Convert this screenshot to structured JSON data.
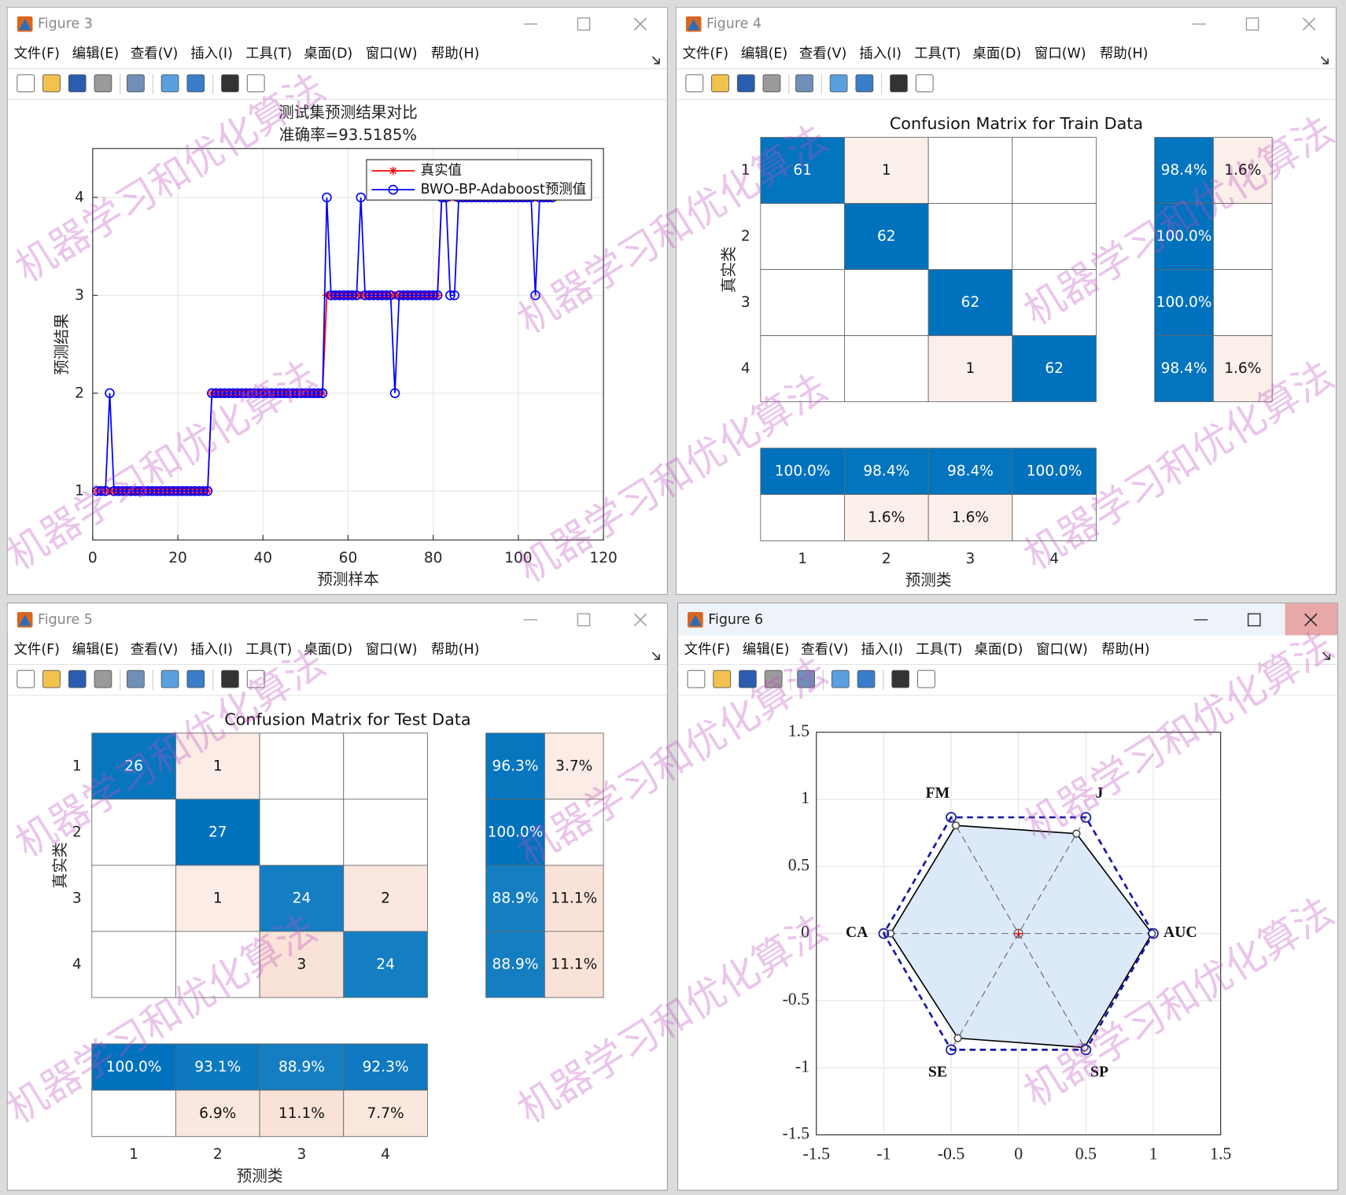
{
  "menu": [
    "文件(F)",
    "编辑(E)",
    "查看(V)",
    "插入(I)",
    "工具(T)",
    "桌面(D)",
    "窗口(W)",
    "帮助(H)"
  ],
  "watermark": "机器学习和优化算法",
  "windows": [
    {
      "title": "Figure 3",
      "chart": {
        "type": "line",
        "title": "测试集预测结果对比",
        "subtitle": "准确率=93.5185%",
        "xlabel": "预测样本",
        "ylabel": "预测结果",
        "xlim": [
          0,
          120
        ],
        "ylim": [
          0.5,
          4.5
        ],
        "xticks": [
          0,
          20,
          40,
          60,
          80,
          100,
          120
        ],
        "yticks": [
          1,
          2,
          3,
          4
        ],
        "grid": true,
        "legend": "upper right",
        "x": [
          1,
          2,
          3,
          4,
          5,
          6,
          7,
          8,
          9,
          10,
          11,
          12,
          13,
          14,
          15,
          16,
          17,
          18,
          19,
          20,
          21,
          22,
          23,
          24,
          25,
          26,
          27,
          28,
          29,
          30,
          31,
          32,
          33,
          34,
          35,
          36,
          37,
          38,
          39,
          40,
          41,
          42,
          43,
          44,
          45,
          46,
          47,
          48,
          49,
          50,
          51,
          52,
          53,
          54,
          55,
          56,
          57,
          58,
          59,
          60,
          61,
          62,
          63,
          64,
          65,
          66,
          67,
          68,
          69,
          70,
          71,
          72,
          73,
          74,
          75,
          76,
          77,
          78,
          79,
          80,
          81,
          82,
          83,
          84,
          85,
          86,
          87,
          88,
          89,
          90,
          91,
          92,
          93,
          94,
          95,
          96,
          97,
          98,
          99,
          100,
          101,
          102,
          103,
          104,
          105,
          106,
          107,
          108
        ],
        "series": [
          {
            "name": "真实值",
            "color": "#ff0000",
            "marker": "asterisk",
            "values": [
              1,
              1,
              1,
              1,
              1,
              1,
              1,
              1,
              1,
              1,
              1,
              1,
              1,
              1,
              1,
              1,
              1,
              1,
              1,
              1,
              1,
              1,
              1,
              1,
              1,
              1,
              1,
              2,
              2,
              2,
              2,
              2,
              2,
              2,
              2,
              2,
              2,
              2,
              2,
              2,
              2,
              2,
              2,
              2,
              2,
              2,
              2,
              2,
              2,
              2,
              2,
              2,
              2,
              2,
              3,
              3,
              3,
              3,
              3,
              3,
              3,
              3,
              3,
              3,
              3,
              3,
              3,
              3,
              3,
              3,
              3,
              3,
              3,
              3,
              3,
              3,
              3,
              3,
              3,
              3,
              3,
              4,
              4,
              4,
              4,
              4,
              4,
              4,
              4,
              4,
              4,
              4,
              4,
              4,
              4,
              4,
              4,
              4,
              4,
              4,
              4,
              4,
              4,
              4,
              4,
              4,
              4,
              4
            ]
          },
          {
            "name": "BWO-BP-Adaboost预测值",
            "color": "#0000ff",
            "marker": "circle",
            "values": [
              1,
              1,
              1,
              2,
              1,
              1,
              1,
              1,
              1,
              1,
              1,
              1,
              1,
              1,
              1,
              1,
              1,
              1,
              1,
              1,
              1,
              1,
              1,
              1,
              1,
              1,
              1,
              2,
              2,
              2,
              2,
              2,
              2,
              2,
              2,
              2,
              2,
              2,
              2,
              2,
              2,
              2,
              2,
              2,
              2,
              2,
              2,
              2,
              2,
              2,
              2,
              2,
              2,
              2,
              4,
              3,
              3,
              3,
              3,
              3,
              3,
              3,
              4,
              3,
              3,
              3,
              3,
              3,
              3,
              3,
              2,
              3,
              3,
              3,
              3,
              3,
              3,
              3,
              3,
              3,
              3,
              4,
              4,
              3,
              3,
              4,
              4,
              4,
              4,
              4,
              4,
              4,
              4,
              4,
              4,
              4,
              4,
              4,
              4,
              4,
              4,
              4,
              4,
              3,
              4,
              4,
              4,
              4
            ]
          }
        ]
      }
    },
    {
      "title": "Figure 4",
      "chart": {
        "type": "confusion",
        "title": "Confusion Matrix for Train Data",
        "xlabel": "预测类",
        "ylabel": "真实类",
        "classes": [
          1,
          2,
          3,
          4
        ],
        "matrix": [
          [
            61,
            1,
            null,
            null
          ],
          [
            null,
            62,
            null,
            null
          ],
          [
            null,
            null,
            62,
            null
          ],
          [
            null,
            null,
            1,
            62
          ]
        ],
        "row_summary": {
          "values": [
            [
              98.4,
              1.6
            ],
            [
              100,
              null
            ],
            [
              100,
              null
            ],
            [
              98.4,
              1.6
            ]
          ],
          "value_labels": [
            [
              "98.4%",
              "1.6%"
            ],
            [
              "100.0%",
              null
            ],
            [
              "100.0%",
              null
            ],
            [
              "98.4%",
              "1.6%"
            ]
          ]
        },
        "column_summary": {
          "values": [
            [
              100,
              98.4,
              98.4,
              100
            ],
            [
              null,
              1.6,
              1.6,
              null
            ]
          ],
          "value_labels": [
            [
              "100.0%",
              "98.4%",
              "98.4%",
              "100.0%"
            ],
            [
              null,
              "1.6%",
              "1.6%",
              null
            ]
          ]
        }
      }
    },
    {
      "title": "Figure 5",
      "chart": {
        "type": "confusion",
        "title": "Confusion Matrix for Test Data",
        "xlabel": "预测类",
        "ylabel": "真实类",
        "classes": [
          1,
          2,
          3,
          4
        ],
        "matrix": [
          [
            26,
            1,
            null,
            null
          ],
          [
            null,
            27,
            null,
            null
          ],
          [
            null,
            1,
            24,
            2
          ],
          [
            null,
            null,
            3,
            24
          ]
        ],
        "row_summary": {
          "values": [
            [
              96.3,
              3.7
            ],
            [
              100,
              null
            ],
            [
              88.9,
              11.1
            ],
            [
              88.9,
              11.1
            ]
          ],
          "value_labels": [
            [
              "96.3%",
              "3.7%"
            ],
            [
              "100.0%",
              null
            ],
            [
              "88.9%",
              "11.1%"
            ],
            [
              "88.9%",
              "11.1%"
            ]
          ]
        },
        "column_summary": {
          "values": [
            [
              100,
              93.1,
              88.9,
              92.3
            ],
            [
              null,
              6.9,
              11.1,
              7.7
            ]
          ],
          "value_labels": [
            [
              "100.0%",
              "93.1%",
              "88.9%",
              "92.3%"
            ],
            [
              null,
              "6.9%",
              "11.1%",
              "7.7%"
            ]
          ]
        }
      }
    },
    {
      "title": "Figure 6",
      "chart": {
        "type": "radar",
        "categories": [
          "AUC",
          "J",
          "FM",
          "CA",
          "SE",
          "SP"
        ],
        "xlim": [
          -1.5,
          1.5
        ],
        "ylim": [
          -1.5,
          1.5
        ],
        "xticks": [
          -1.5,
          -1,
          -0.5,
          0,
          0.5,
          1,
          1.5
        ],
        "yticks": [
          -1.5,
          -1,
          -0.5,
          0,
          0.5,
          1,
          1.5
        ],
        "grid": true,
        "series": [
          {
            "color": "#000000",
            "fill": "#dce9f8",
            "style": "solid",
            "values": [
              0.99,
              0.86,
              0.93,
              0.95,
              0.9,
              0.98
            ]
          },
          {
            "color": "#1a1aa8",
            "style": "dashed",
            "values": [
              1,
              1,
              1,
              1,
              1,
              1
            ]
          }
        ]
      }
    }
  ]
}
